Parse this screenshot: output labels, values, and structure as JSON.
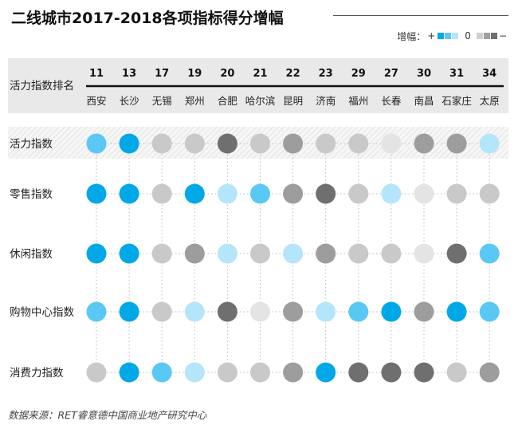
{
  "title": "二线城市2017-2018各项指标得分增幅",
  "legend": {
    "label": "增幅：",
    "plus": "+",
    "zero": "0",
    "minus": "−",
    "positive_colors": [
      "#00a8e8",
      "#5ac8f5",
      "#b5e5fa"
    ],
    "negative_colors": [
      "#d0d0d0",
      "#a0a0a0",
      "#707070"
    ]
  },
  "source": "数据来源：RET睿意德中国商业地产研究中心",
  "chart_data": {
    "type": "heatmap",
    "row_header_label": "活力指数排名",
    "ranks": [
      "11",
      "13",
      "17",
      "19",
      "20",
      "21",
      "22",
      "23",
      "29",
      "27",
      "30",
      "31",
      "34"
    ],
    "cities": [
      "西安",
      "长沙",
      "无锡",
      "郑州",
      "合肥",
      "哈尔滨",
      "昆明",
      "济南",
      "福州",
      "长春",
      "南昌",
      "石家庄",
      "太原"
    ],
    "rows": [
      "活力指数",
      "零售指数",
      "休闲指数",
      "购物中心指数",
      "消费力指数"
    ],
    "highlighted_row": "活力指数",
    "scale": {
      "description": "increase level: positive = blue (darker = larger), negative = grey (darker = larger decline)",
      "range": [
        -3,
        3
      ]
    },
    "values": [
      [
        2,
        3,
        -1,
        -1,
        -3,
        -1,
        -2,
        -1,
        -1,
        0,
        -2,
        -2,
        1
      ],
      [
        3,
        3,
        -1,
        3,
        1,
        2,
        -2,
        -3,
        -1,
        1,
        0,
        -1,
        -1
      ],
      [
        3,
        3,
        -1,
        -2,
        1,
        -1,
        1,
        -2,
        -1,
        -1,
        0,
        -3,
        2
      ],
      [
        2,
        3,
        -1,
        1,
        -3,
        0,
        -2,
        1,
        2,
        3,
        -2,
        3,
        2
      ],
      [
        -1,
        3,
        2,
        1,
        -1,
        -1,
        -2,
        3,
        -3,
        -3,
        -3,
        -1,
        -2
      ]
    ]
  }
}
